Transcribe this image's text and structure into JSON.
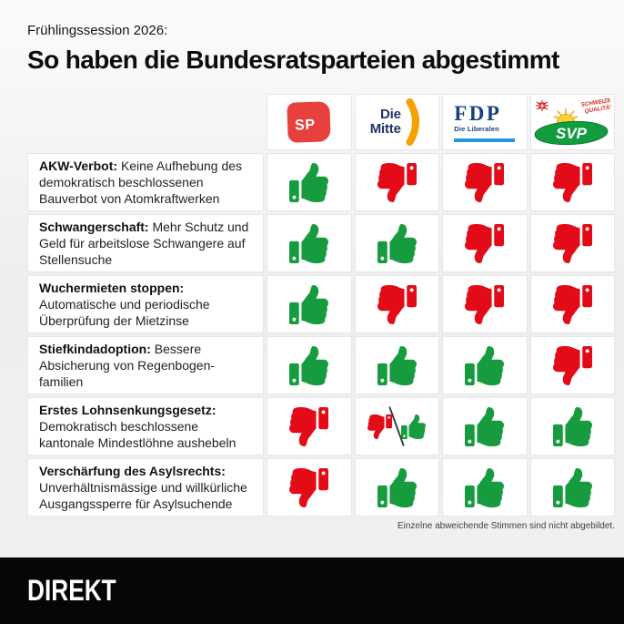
{
  "header": {
    "kicker": "Frühlingssession 2026:",
    "title": "So haben die Bundesratsparteien abgestimmt"
  },
  "parties": [
    {
      "id": "sp",
      "name": "SP"
    },
    {
      "id": "mitte",
      "name_line1": "Die",
      "name_line2": "Mitte"
    },
    {
      "id": "fdp",
      "name": "FDP",
      "subtitle": "Die Liberalen"
    },
    {
      "id": "svp",
      "name": "SVP",
      "quality_line1": "SCHWEIZER",
      "quality_line2": "QUALITÄT"
    }
  ],
  "chart_data": {
    "type": "table",
    "subtitle": "Frühlingssession 2026:",
    "title": "So haben die Bundesratsparteien abgestimmt",
    "columns": [
      "SP",
      "Die Mitte",
      "FDP",
      "SVP"
    ],
    "vote_legend": {
      "up": "thumbs-up (dafür)",
      "down": "thumbs-down (dagegen)",
      "split": "thumbs-down / thumbs-up (gespalten)"
    },
    "rows": [
      {
        "topic": "AKW-Verbot:",
        "description": "Keine Aufhebung des demokratisch beschlossenen Bauverbot von Atomkraftwerken",
        "votes": [
          "up",
          "down",
          "down",
          "down"
        ]
      },
      {
        "topic": "Schwangerschaft:",
        "description": "Mehr Schutz und Geld für arbeitslose Schwangere auf Stellensuche",
        "votes": [
          "up",
          "up",
          "down",
          "down"
        ]
      },
      {
        "topic": "Wuchermieten stoppen:",
        "description": "Automatische und periodische Überprüfung der Mietzinse",
        "votes": [
          "up",
          "down",
          "down",
          "down"
        ]
      },
      {
        "topic": "Stiefkindadoption:",
        "description": "Bessere Absicherung von Regenbogen-familien",
        "votes": [
          "up",
          "up",
          "up",
          "down"
        ]
      },
      {
        "topic": "Erstes Lohnsenkungsgesetz:",
        "description": "Demokratisch beschlossene kantonale Mindestlöhne aushebeln",
        "votes": [
          "down",
          "split",
          "up",
          "up"
        ]
      },
      {
        "topic": "Verschärfung des Asylsrechts:",
        "description": "Unverhältnismässige und willkürliche Ausgangssperre für Asylsuchende",
        "votes": [
          "down",
          "up",
          "up",
          "up"
        ]
      }
    ],
    "note": "Einzelne abweichende Stimmen sind nicht abgebildet."
  },
  "footer": {
    "brand": "DIREKT"
  },
  "colors": {
    "thumb_up": "#169c3e",
    "thumb_down": "#e30b17",
    "sp_red": "#e8413d",
    "mitte_navy": "#22356b",
    "mitte_orange": "#f5a100",
    "fdp_blue": "#17407f",
    "fdp_lightblue": "#2196d4",
    "svp_green": "#129b3f",
    "svp_yellow": "#ffd233",
    "svp_red": "#da251d",
    "background": "#f1f0f0",
    "brandbar": "#060606"
  }
}
